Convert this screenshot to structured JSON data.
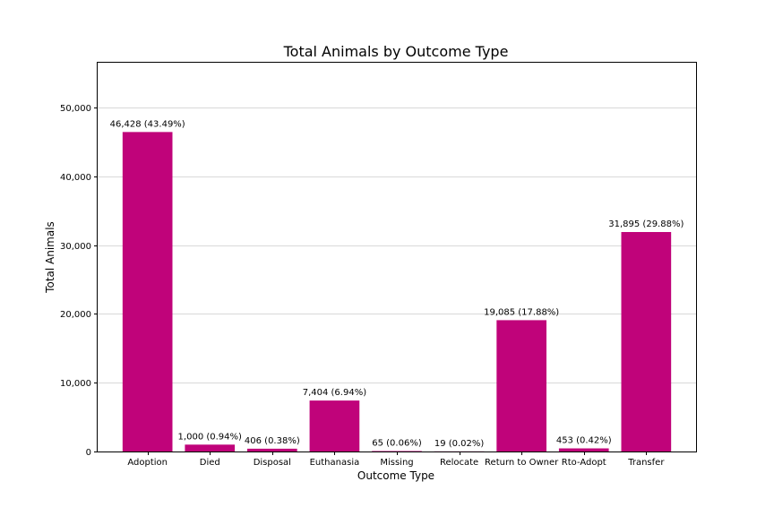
{
  "chart_data": {
    "type": "bar",
    "title": "Total Animals by Outcome Type",
    "xlabel": "Outcome Type",
    "ylabel": "Total Animals",
    "categories": [
      "Adoption",
      "Died",
      "Disposal",
      "Euthanasia",
      "Missing",
      "Relocate",
      "Return to Owner",
      "Rto-Adopt",
      "Transfer"
    ],
    "values": [
      46428,
      1000,
      406,
      7404,
      65,
      19,
      19085,
      453,
      31895
    ],
    "data_labels": [
      "46,428 (43.49%)",
      "1,000 (0.94%)",
      "406 (0.38%)",
      "7,404 (6.94%)",
      "65 (0.06%)",
      "19 (0.02%)",
      "19,085 (17.88%)",
      "453 (0.42%)",
      "31,895 (29.88%)"
    ],
    "ylim": [
      0,
      56500
    ],
    "yticks": [
      0,
      10000,
      20000,
      30000,
      40000,
      50000
    ],
    "ytick_labels": [
      "0",
      "10,000",
      "20,000",
      "30,000",
      "40,000",
      "50,000"
    ],
    "bar_color": "#c0037a",
    "grid": "horizontal"
  }
}
